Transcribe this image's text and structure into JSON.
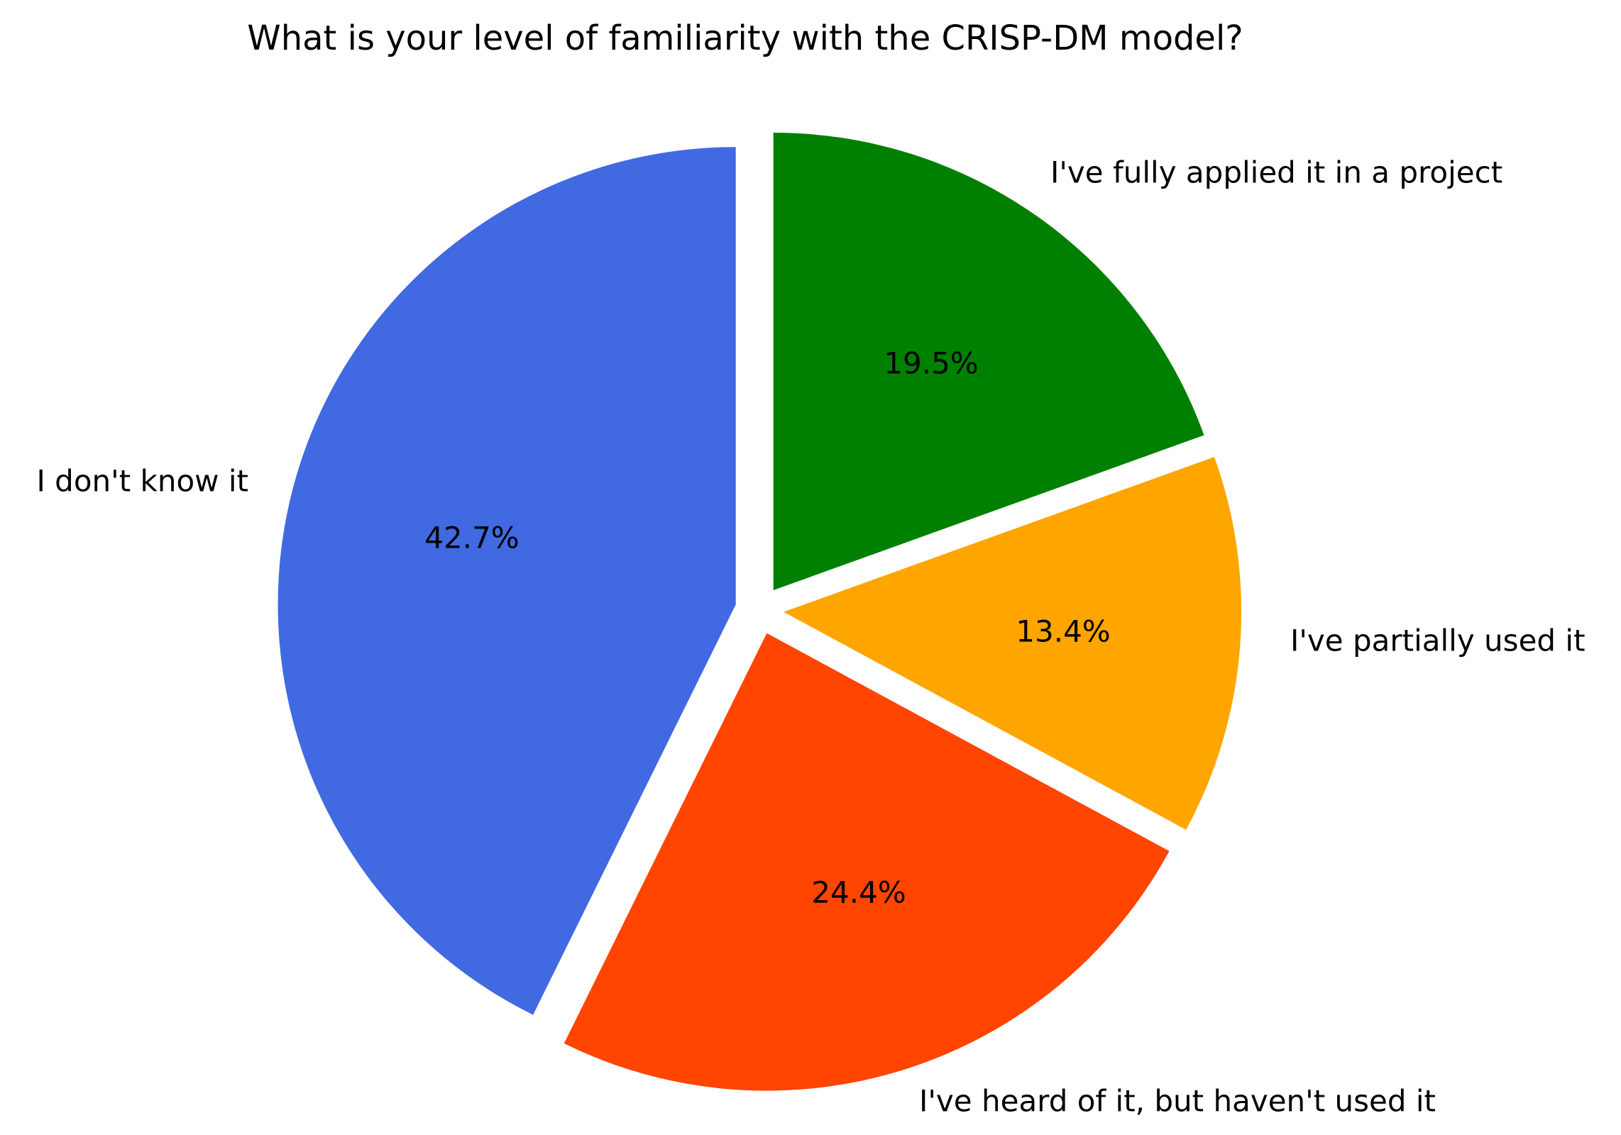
{
  "chart_data": {
    "type": "pie",
    "title": "What is your level of familiarity with the CRISP-DM model?",
    "slices": [
      {
        "label": "I don't know it",
        "value": 42.7,
        "pct_label": "42.7%",
        "color": "#4169E1"
      },
      {
        "label": "I've heard of it, but haven't used it",
        "value": 24.4,
        "pct_label": "24.4%",
        "color": "#FF4500"
      },
      {
        "label": "I've partially used it",
        "value": 13.4,
        "pct_label": "13.4%",
        "color": "#FFA500"
      },
      {
        "label": "I've fully applied it in a project",
        "value": 19.5,
        "pct_label": "19.5%",
        "color": "#008000"
      }
    ],
    "start_angle_deg": 90,
    "direction": "counterclockwise",
    "explode": 0.053,
    "legend_position": "none",
    "grid": false,
    "background_color": "#FFFFFF",
    "text_color": "#000000"
  }
}
